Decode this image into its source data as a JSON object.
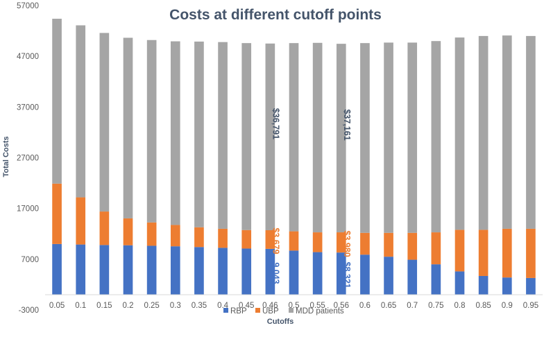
{
  "chart_data": {
    "type": "bar",
    "stacked": true,
    "title": "Costs at different cutoff points",
    "xlabel": "Cutoffs",
    "ylabel": "Total Costs",
    "ylim": [
      -3000,
      57000
    ],
    "yticks": [
      -3000,
      7000,
      17000,
      27000,
      37000,
      47000,
      57000
    ],
    "grid": false,
    "legend_position": "bottom",
    "categories": [
      "0.05",
      "0.1",
      "0.15",
      "0.2",
      "0.25",
      "0.3",
      "0.35",
      "0.4",
      "0.45",
      "0.46",
      "0.5",
      "0.55",
      "0.56",
      "0.6",
      "0.65",
      "0.7",
      "0.75",
      "0.8",
      "0.85",
      "0.9",
      "0.95"
    ],
    "series": [
      {
        "name": "RBP",
        "color": "#4472c4",
        "values": [
          10000,
          9900,
          9800,
          9750,
          9650,
          9550,
          9400,
          9250,
          9100,
          9043,
          8700,
          8400,
          8321,
          7900,
          7500,
          6900,
          6000,
          4600,
          3700,
          3400,
          3300
        ]
      },
      {
        "name": "UBP",
        "color": "#ed7d31",
        "values": [
          11900,
          9300,
          6600,
          5300,
          4600,
          4200,
          3900,
          3750,
          3650,
          3679,
          3800,
          3900,
          3980,
          4300,
          4700,
          5300,
          6300,
          8200,
          9100,
          9600,
          9700
        ]
      },
      {
        "name": "MDD patients",
        "color": "#a5a5a5",
        "values": [
          32500,
          33900,
          35200,
          35600,
          35950,
          36200,
          36600,
          36800,
          36850,
          36791,
          37100,
          37350,
          37161,
          37400,
          37500,
          37500,
          37700,
          37900,
          38200,
          38100,
          38000
        ]
      }
    ],
    "annotations": [
      {
        "category": "0.46",
        "series": "MDD patients",
        "text": "$36,791",
        "color": "#44546a"
      },
      {
        "category": "0.46",
        "series": "UBP",
        "text": "$3,679",
        "color": "#ed7d31"
      },
      {
        "category": "0.46",
        "series": "RBP",
        "text": "9,043",
        "color": "#4472c4"
      },
      {
        "category": "0.56",
        "series": "MDD patients",
        "text": "$37,161",
        "color": "#44546a"
      },
      {
        "category": "0.56",
        "series": "UBP",
        "text": "$3,980",
        "color": "#ed7d31"
      },
      {
        "category": "0.56",
        "series": "RBP",
        "text": "$8,321",
        "color": "#4472c4"
      }
    ]
  }
}
